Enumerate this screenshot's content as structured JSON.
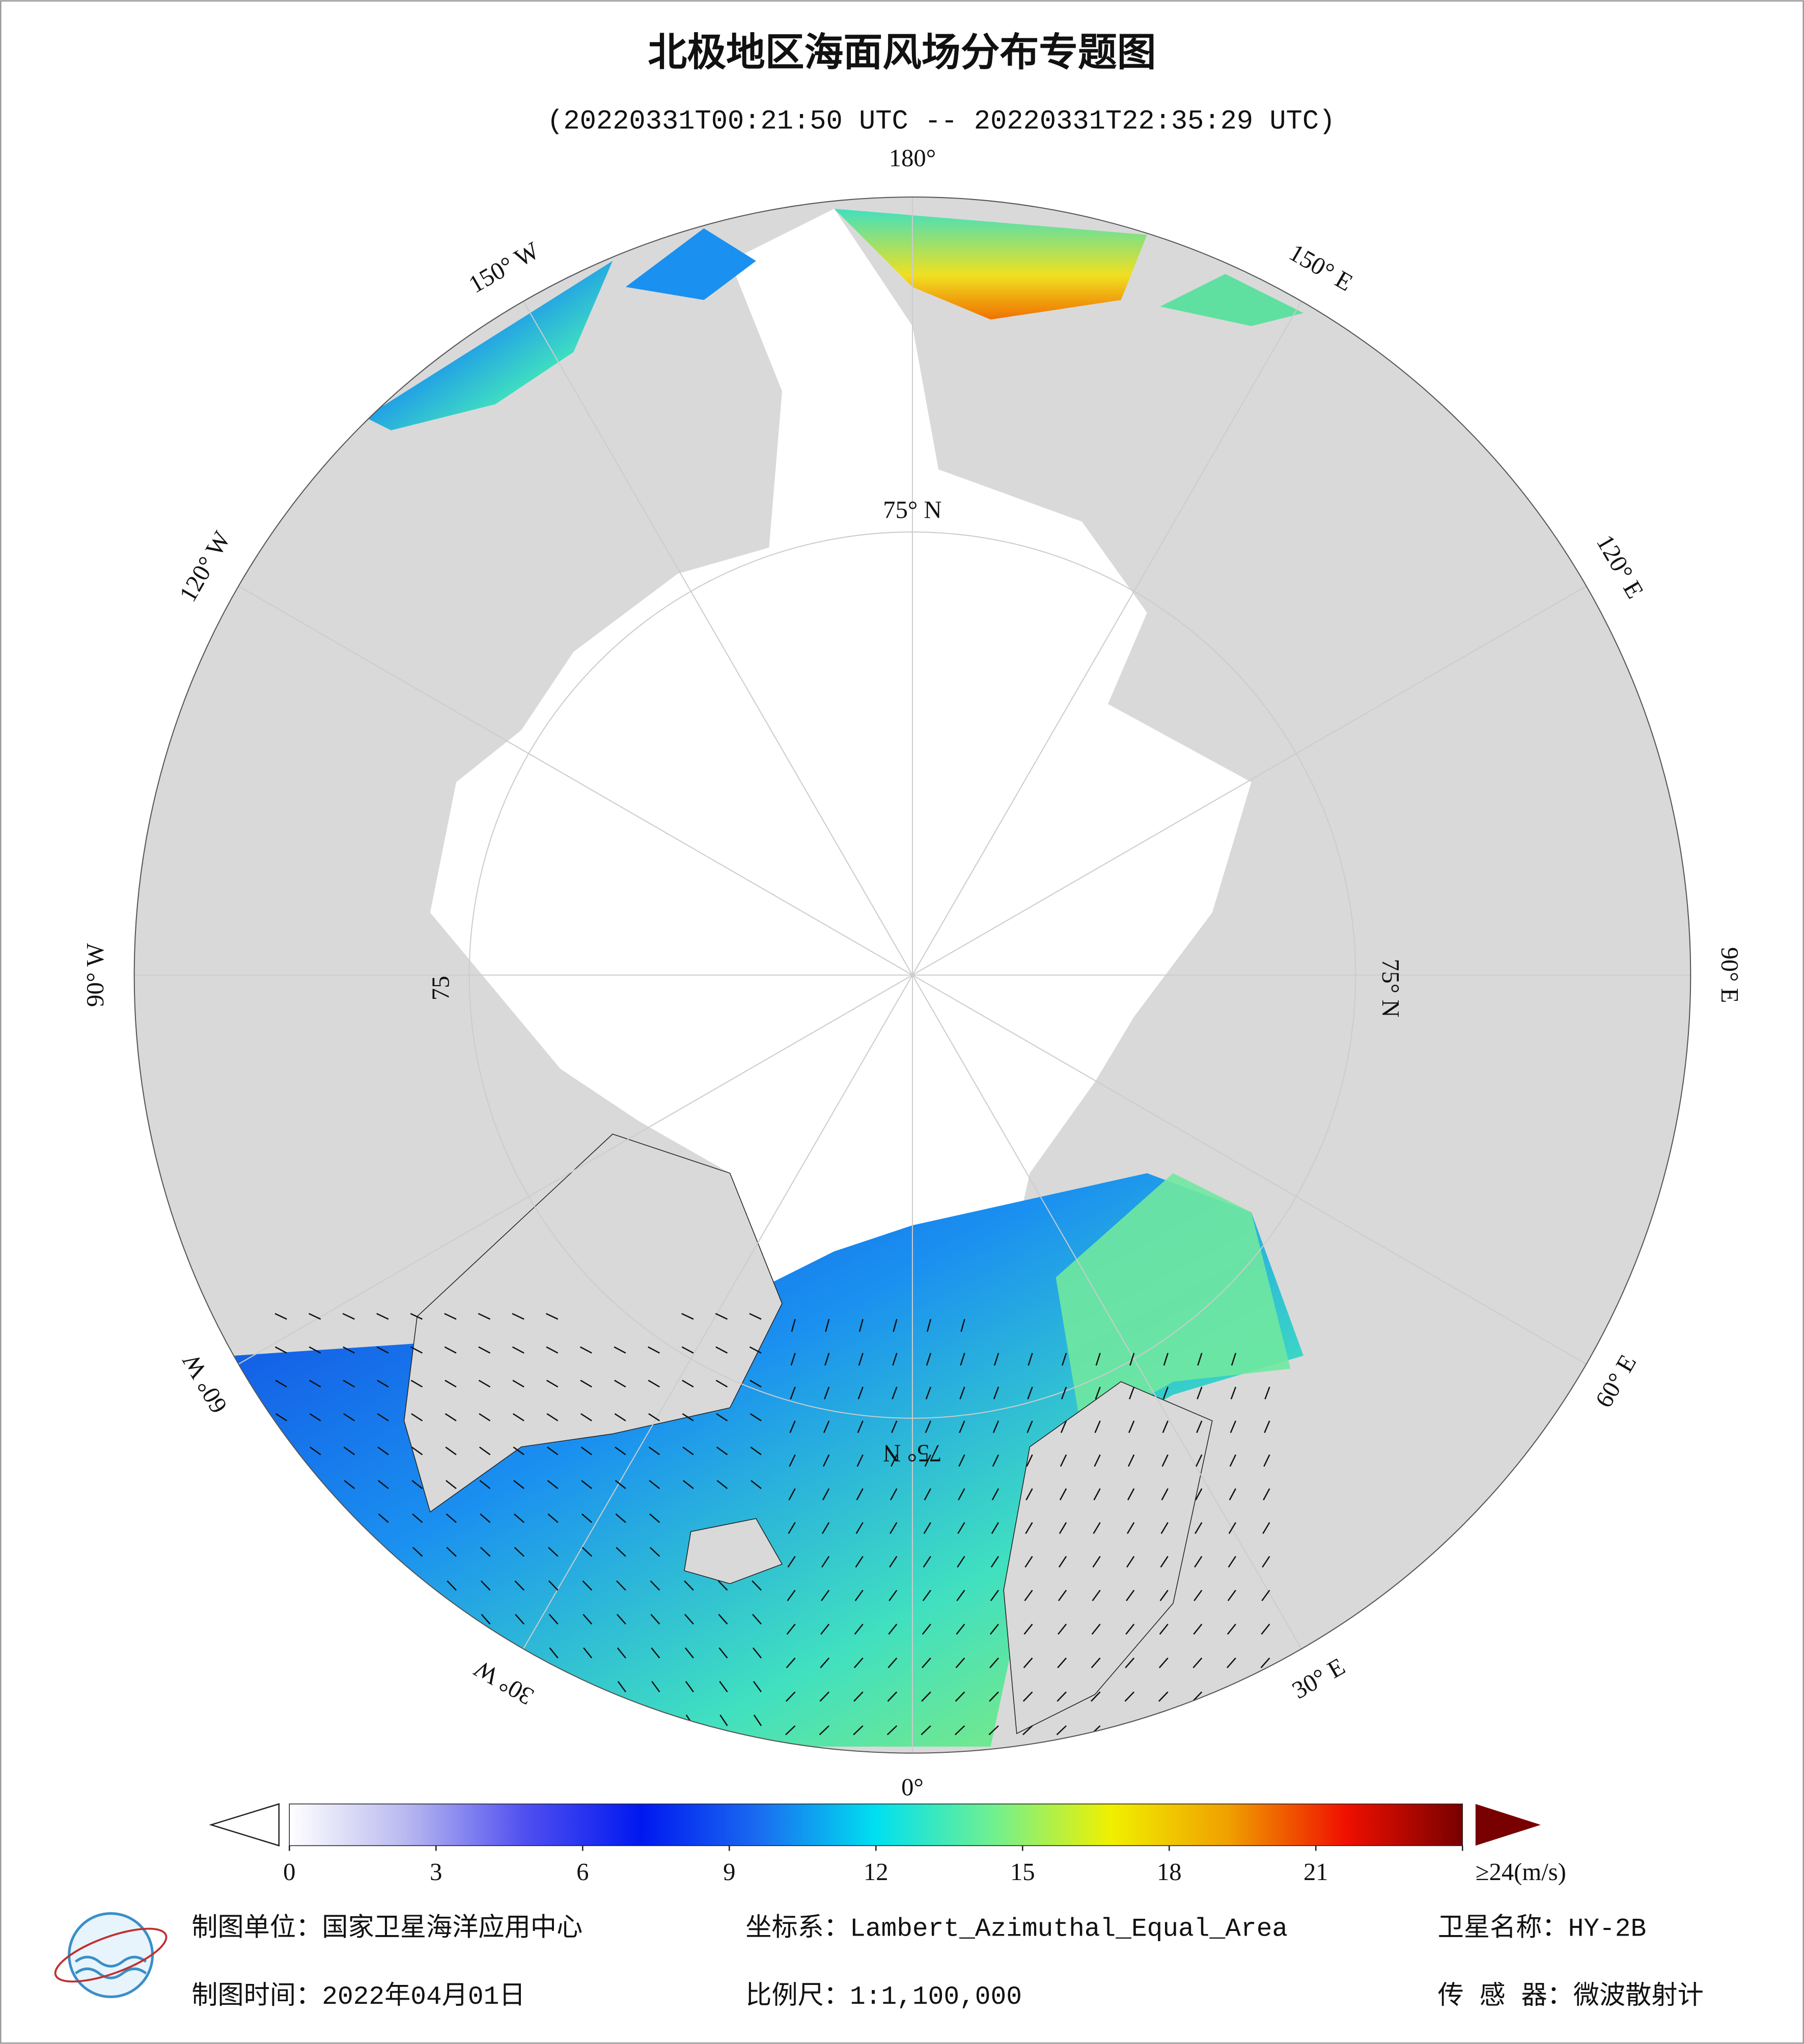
{
  "title": "北极地区海面风场分布专题图",
  "subtitle": "(20220331T00:21:50 UTC -- 20220331T22:35:29 UTC)",
  "map": {
    "longitude_labels": [
      "180°",
      "150° E",
      "120° E",
      "90° E",
      "60° E",
      "30° E",
      "0°",
      "30° W",
      "60° W",
      "90° W",
      "120° W",
      "150° W"
    ],
    "latitude_labels": [
      "75° N",
      "75° N",
      "75° N",
      "75"
    ]
  },
  "colorbar": {
    "lim": [
      0,
      24
    ],
    "ticks": [
      0,
      3,
      6,
      9,
      12,
      15,
      18,
      21,
      {
        "value": 24,
        "label": "≥24(m/s)"
      }
    ],
    "colors": [
      "#ffffff",
      "#b8b8f0",
      "#5050f0",
      "#0018f0",
      "#1a6cf0",
      "#00e0f0",
      "#70f090",
      "#f0f000",
      "#f0a000",
      "#f01000",
      "#780000"
    ]
  },
  "footer": {
    "unit": "制图单位：国家卫星海洋应用中心",
    "crs": "坐标系：Lambert_Azimuthal_Equal_Area",
    "satellite": "卫星名称：HY-2B",
    "date": "制图时间：2022年04月01日",
    "scale": "比例尺：1:1,100,000",
    "sensor": "传 感 器：微波散射计"
  }
}
